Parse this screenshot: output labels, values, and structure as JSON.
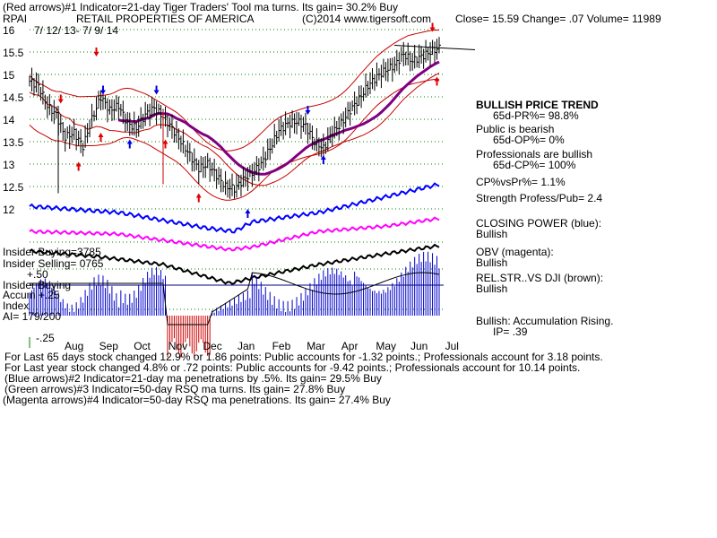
{
  "header": {
    "line1": "(Red arrows)#1 Indicator=21-day Tiger Traders' Tool ma turns. Its gain= 30.2% Buy",
    "symbol": "RPAI",
    "company": "RETAIL PROPERTIES OF AMERICA",
    "copyright": "(C)2014 www.tigersoft.com",
    "quote": "Close=  15.59  Change= .07 Volume= 11989",
    "date_range": "7/ 12/ 13- 7/ 9/ 14"
  },
  "right_panel": {
    "trend_title": "BULLISH PRICE TREND",
    "pr": "65d-PR%= 98.8%",
    "public": "Public is bearish",
    "op": "65d-OP%= 0%",
    "professionals": "Professionals are bullish",
    "cp": "65d-CP%= 100%",
    "cp_vs_pr": "CP%vsPr%=  1.1%",
    "strength": "Strength Profess/Pub= 2.4",
    "closing_power_label": "CLOSING POWER (blue):",
    "closing_power_value": "Bullish",
    "obv_label": "OBV (magenta):",
    "obv_value": "Bullish",
    "relstr_label": "REL.STR..VS DJI (brown):",
    "relstr_value": "Bullish",
    "accum_label": "Bullish: Accumulation Rising.",
    "ip": "IP=  .39"
  },
  "lower_left": {
    "insider_buying": "Insider Buying=3785",
    "insider_selling": "Insider Selling= 0765",
    "plus50": "+.50",
    "insider_buying2": "Insider Buying",
    "accum": "Accum  +.25",
    "index": "Index",
    "ai": "AI= 179/200",
    "minus25": "-.25"
  },
  "footer": {
    "line1": "For Last 65 days stock changed  12.9% or  1.86 points:  Public accounts for -1.32 points.;  Professionals account for  3.18 points.",
    "line2": "For Last year stock changed  4.8% or  .72 points:  Public accounts for -9.42 points.;  Professionals account for  10.14 points.",
    "line3": "(Blue arrows)#2 Indicator=21-day ma penetrations by .5%. Its gain= 29.5% Buy",
    "line4": "(Green arrows)#3 Indicator=50-day RSQ ma turns. Its gain= 27.8% Buy",
    "line5": "(Magenta arrows)#4 Indicator=50-day RSQ ma penetrations. Its gain= 27.4% Buy"
  },
  "chart_data": {
    "type": "line",
    "title": "RETAIL PROPERTIES OF AMERICA",
    "xlabel": "",
    "ylabel": "",
    "x_ticks": [
      "Aug",
      "Sep",
      "Oct",
      "Nov",
      "Dec",
      "Jan",
      "Feb",
      "Mar",
      "Apr",
      "May",
      "Jun",
      "Jul"
    ],
    "y_ticks": [
      16,
      15.5,
      15,
      14.5,
      14,
      13.5,
      13,
      12.5,
      12
    ],
    "ylim": [
      11.9,
      16.1
    ],
    "grid": true,
    "colors": {
      "price": "#000000",
      "band": "#c80000",
      "ma_purple": "#800080",
      "closing_power": "#0000ff",
      "obv": "#ff00ff",
      "relstr": "#8b4513",
      "accum_pos": "#0000cc",
      "accum_neg": "#cc0000",
      "grid": "#008000"
    },
    "series": [
      {
        "name": "Price",
        "values": [
          [
            0,
            14.85
          ],
          [
            4,
            14.75
          ],
          [
            8,
            14.3
          ],
          [
            12,
            14.1
          ],
          [
            16,
            13.6
          ],
          [
            20,
            13.7
          ],
          [
            24,
            13.4
          ],
          [
            28,
            14.0
          ],
          [
            32,
            14.5
          ],
          [
            36,
            14.2
          ],
          [
            40,
            14.3
          ],
          [
            44,
            13.9
          ],
          [
            48,
            13.8
          ],
          [
            52,
            14.1
          ],
          [
            56,
            14.25
          ],
          [
            60,
            14.05
          ],
          [
            64,
            13.8
          ],
          [
            68,
            13.5
          ],
          [
            72,
            13.2
          ],
          [
            76,
            12.9
          ],
          [
            80,
            13.0
          ],
          [
            84,
            12.75
          ],
          [
            88,
            12.5
          ],
          [
            92,
            12.45
          ],
          [
            96,
            12.65
          ],
          [
            100,
            12.8
          ],
          [
            104,
            13.0
          ],
          [
            108,
            13.35
          ],
          [
            112,
            13.75
          ],
          [
            116,
            13.9
          ],
          [
            120,
            13.95
          ],
          [
            124,
            13.85
          ],
          [
            128,
            13.5
          ],
          [
            132,
            13.35
          ],
          [
            136,
            13.7
          ],
          [
            140,
            13.9
          ],
          [
            144,
            14.2
          ],
          [
            148,
            14.45
          ],
          [
            152,
            14.75
          ],
          [
            156,
            14.95
          ],
          [
            160,
            15.1
          ],
          [
            164,
            15.2
          ],
          [
            168,
            15.45
          ],
          [
            172,
            15.3
          ],
          [
            176,
            15.4
          ],
          [
            180,
            15.5
          ],
          [
            184,
            15.59
          ]
        ]
      },
      {
        "name": "CLOSING POWER (blue)",
        "values": [
          [
            0,
            0.4
          ],
          [
            40,
            0.3
          ],
          [
            80,
            0.05
          ],
          [
            92,
            0.0
          ],
          [
            100,
            0.15
          ],
          [
            130,
            0.3
          ],
          [
            160,
            0.55
          ],
          [
            184,
            0.75
          ]
        ]
      },
      {
        "name": "OBV (magenta)",
        "values": [
          [
            0,
            0.55
          ],
          [
            40,
            0.5
          ],
          [
            90,
            0.2
          ],
          [
            100,
            0.25
          ],
          [
            130,
            0.55
          ],
          [
            160,
            0.65
          ],
          [
            184,
            0.8
          ]
        ]
      },
      {
        "name": "REL.STR..VS DJI (brown)",
        "values": [
          [
            0,
            0.7
          ],
          [
            30,
            0.6
          ],
          [
            60,
            0.45
          ],
          [
            90,
            0.1
          ],
          [
            100,
            0.2
          ],
          [
            130,
            0.45
          ],
          [
            160,
            0.65
          ],
          [
            184,
            0.8
          ]
        ]
      }
    ]
  }
}
